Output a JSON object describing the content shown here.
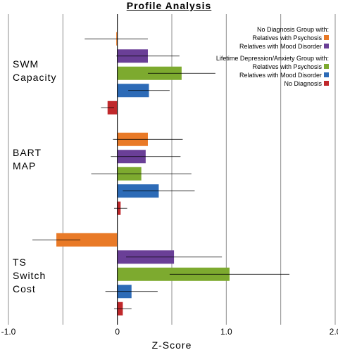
{
  "chart_data": {
    "type": "bar",
    "orientation": "horizontal",
    "title": "Profile Analysis",
    "xlabel": "Z-Score",
    "xlim": [
      -1.0,
      2.0
    ],
    "x_ticks": [
      -1.0,
      -0.5,
      0,
      0.5,
      1.0,
      1.5,
      2.0
    ],
    "x_tick_labels": [
      "-1.0",
      "",
      "0",
      "",
      "1.0",
      "",
      "2.0"
    ],
    "grid": true,
    "legend_position": "top-right",
    "legend_groups": [
      {
        "header": "No Diagnosis  Group with:",
        "items": [
          0,
          1
        ]
      },
      {
        "header": "Lifetime Depression/Anxiety Group with:",
        "items": [
          2,
          3,
          4
        ]
      }
    ],
    "categories": [
      {
        "label_lines": [
          "SWM",
          "Capacity"
        ]
      },
      {
        "label_lines": [
          "BART",
          "MAP"
        ]
      },
      {
        "label_lines": [
          "TS",
          "Switch",
          "Cost"
        ]
      }
    ],
    "series": [
      {
        "name": "Relatives with Psychosis",
        "color": "#e97a27",
        "values": [
          -0.01,
          0.28,
          -0.56
        ],
        "errors": [
          0.29,
          0.32,
          0.22
        ]
      },
      {
        "name": "Relatives with Mood Disorder",
        "color": "#6a3f97",
        "values": [
          0.28,
          0.26,
          0.52
        ],
        "errors": [
          0.29,
          0.32,
          0.44
        ]
      },
      {
        "name": "Relatives with Psychosis",
        "color": "#7daa2f",
        "values": [
          0.59,
          0.22,
          1.03
        ],
        "errors": [
          0.31,
          0.46,
          0.55
        ]
      },
      {
        "name": "Relatives with Mood Disorder",
        "color": "#2d6bb7",
        "values": [
          0.29,
          0.38,
          0.13
        ],
        "errors": [
          0.19,
          0.33,
          0.24
        ]
      },
      {
        "name": "No Diagnosis",
        "color": "#c0282b",
        "values": [
          -0.09,
          0.03,
          0.05
        ],
        "errors": [
          0.06,
          0.06,
          0.08
        ]
      }
    ]
  }
}
